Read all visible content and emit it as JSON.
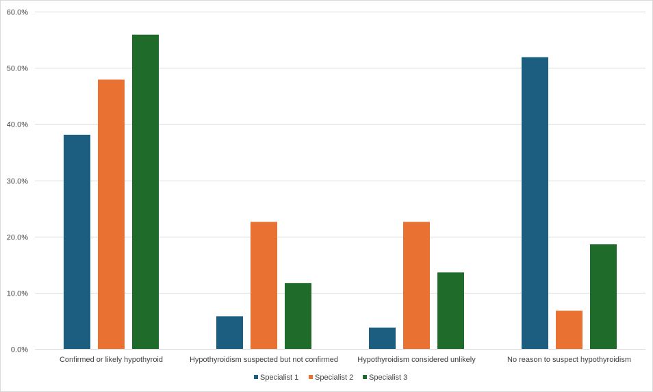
{
  "chart_data": {
    "type": "bar",
    "title": "",
    "xlabel": "",
    "ylabel": "",
    "categories": [
      "Confirmed or likely hypothyroid",
      "Hypothyroidism suspected but not confirmed",
      "Hypothyroidism considered unlikely",
      "No reason to suspect hypothyroidism"
    ],
    "series": [
      {
        "name": "Specialist 1",
        "color": "#1b5e80",
        "values": [
          38.1,
          5.8,
          3.8,
          51.9
        ]
      },
      {
        "name": "Specialist 2",
        "color": "#e97132",
        "values": [
          47.9,
          22.6,
          22.6,
          6.8
        ]
      },
      {
        "name": "Specialist 3",
        "color": "#1e6b2a",
        "values": [
          55.9,
          11.7,
          13.6,
          18.6
        ]
      }
    ],
    "ylim": [
      0,
      60
    ],
    "yticks": [
      0,
      10,
      20,
      30,
      40,
      50,
      60
    ],
    "ytick_labels": [
      "0.0%",
      "10.0%",
      "20.0%",
      "30.0%",
      "40.0%",
      "50.0%",
      "60.0%"
    ],
    "grid": true,
    "legend_position": "bottom"
  }
}
